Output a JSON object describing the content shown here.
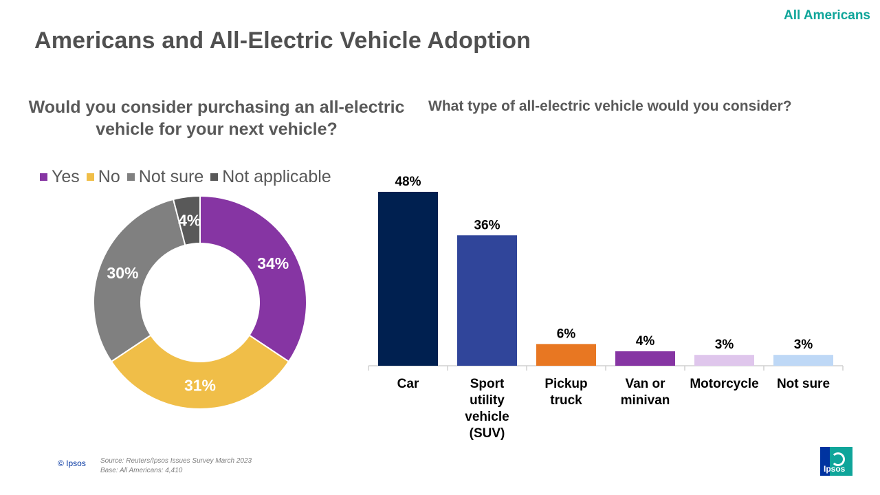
{
  "header": {
    "audience": "All Americans",
    "title": "Americans and All-Electric Vehicle Adoption"
  },
  "chart_data": [
    {
      "type": "donut",
      "title": "Would you consider purchasing an all-electric vehicle for your next vehicle?",
      "categories": [
        "Yes",
        "No",
        "Not sure",
        "Not applicable"
      ],
      "values": [
        34,
        31,
        30,
        4
      ],
      "labels": [
        "34%",
        "31%",
        "30%",
        "4%"
      ],
      "colors": [
        "#8635a3",
        "#f0be48",
        "#808080",
        "#595959"
      ],
      "legend_position": "top"
    },
    {
      "type": "bar",
      "title": "What type of all-electric vehicle would you consider?",
      "categories": [
        "Car",
        "Sport utility vehicle (SUV)",
        "Pickup truck",
        "Van or minivan",
        "Motorcycle",
        "Not sure"
      ],
      "category_lines": [
        [
          "Car"
        ],
        [
          "Sport",
          "utility",
          "vehicle",
          "(SUV)"
        ],
        [
          "Pickup",
          "truck"
        ],
        [
          "Van or",
          "minivan"
        ],
        [
          "Motorcycle"
        ],
        [
          "Not sure"
        ]
      ],
      "values": [
        48,
        36,
        6,
        4,
        3,
        3
      ],
      "labels": [
        "48%",
        "36%",
        "6%",
        "4%",
        "3%",
        "3%"
      ],
      "colors": [
        "#002050",
        "#30459a",
        "#e87722",
        "#8635a3",
        "#dfc6ec",
        "#bed8f6"
      ],
      "ylim": [
        0,
        48
      ],
      "xlabel": "",
      "ylabel": "",
      "grid": false
    }
  ],
  "footer": {
    "copyright": "© Ipsos",
    "source": "Source: Reuters/Ipsos Issues Survey March 2023",
    "base": "Base: All Americans: 4,410",
    "logo_text": "Ipsos"
  }
}
